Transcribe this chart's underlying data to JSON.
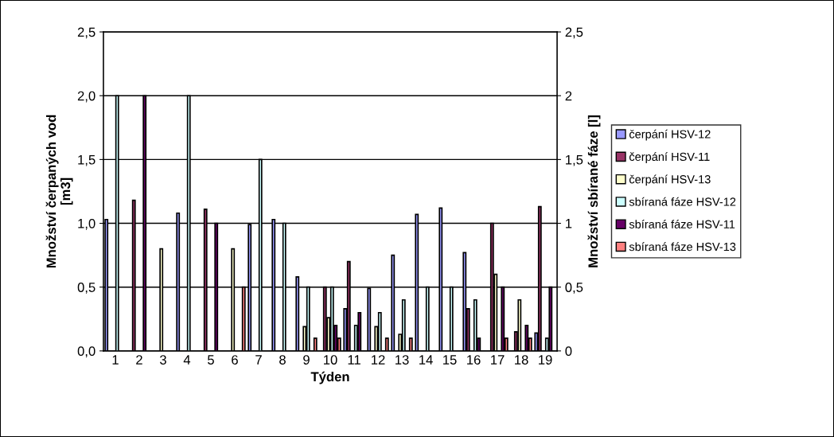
{
  "chart_data": {
    "type": "bar",
    "xlabel": "Týden",
    "ylabel": "Množství čerpaných vod\n[m3]",
    "y2label": "Množství sbírané fáze [l]",
    "categories": [
      "1",
      "2",
      "3",
      "4",
      "5",
      "6",
      "7",
      "8",
      "9",
      "10",
      "11",
      "12",
      "13",
      "14",
      "15",
      "16",
      "17",
      "18",
      "19"
    ],
    "series": [
      {
        "name": "čerpání HSV-12",
        "color": "#9999ff",
        "values": [
          1.03,
          null,
          null,
          1.08,
          null,
          null,
          0.99,
          1.03,
          0.58,
          null,
          0.33,
          0.49,
          0.75,
          1.07,
          1.12,
          0.77,
          null,
          null,
          0.14
        ]
      },
      {
        "name": "čerpání HSV-11",
        "color": "#993366",
        "values": [
          null,
          1.18,
          null,
          null,
          1.11,
          null,
          null,
          null,
          null,
          0.5,
          0.7,
          null,
          null,
          null,
          null,
          0.33,
          1.0,
          0.15,
          1.13
        ]
      },
      {
        "name": "čerpání HSV-13",
        "color": "#ffffcc",
        "values": [
          null,
          null,
          0.8,
          null,
          null,
          0.8,
          null,
          null,
          0.19,
          0.26,
          null,
          0.19,
          0.13,
          null,
          null,
          null,
          0.6,
          0.4,
          null
        ]
      },
      {
        "name": "sbíraná fáze HSV-12",
        "color": "#ccffff",
        "axis": "y2",
        "values": [
          2,
          null,
          null,
          2,
          null,
          null,
          1.5,
          1,
          0.5,
          0.5,
          0.2,
          0.3,
          0.4,
          0.5,
          0.5,
          0.4,
          null,
          null,
          0.1
        ]
      },
      {
        "name": "sbíraná fáze HSV-11",
        "color": "#660066",
        "axis": "y2",
        "values": [
          null,
          2,
          null,
          null,
          1,
          null,
          null,
          null,
          null,
          0.2,
          0.3,
          null,
          null,
          null,
          null,
          0.1,
          0.5,
          0.2,
          0.5
        ]
      },
      {
        "name": "sbíraná fáze HSV-13",
        "color": "#ff8080",
        "axis": "y2",
        "values": [
          null,
          null,
          null,
          null,
          null,
          0.5,
          null,
          null,
          0.1,
          0.1,
          null,
          0.1,
          0.1,
          null,
          null,
          null,
          0.1,
          0.1,
          null
        ]
      }
    ],
    "ylim": [
      0,
      2.5
    ],
    "yticks": [
      {
        "value": 0,
        "label": "0,0"
      },
      {
        "value": 0.5,
        "label": "0,5"
      },
      {
        "value": 1,
        "label": "1,0"
      },
      {
        "value": 1.5,
        "label": "1,5"
      },
      {
        "value": 2,
        "label": "2,0"
      },
      {
        "value": 2.5,
        "label": "2,5"
      }
    ],
    "y2lim": [
      0,
      2.5
    ],
    "y2ticks": [
      0,
      {
        "value": 0.5,
        "label": "0,5"
      },
      1,
      {
        "value": 1.5,
        "label": "1,5"
      },
      2,
      {
        "value": 2.5,
        "label": "2,5"
      }
    ],
    "grid": "y",
    "legend": "right"
  }
}
